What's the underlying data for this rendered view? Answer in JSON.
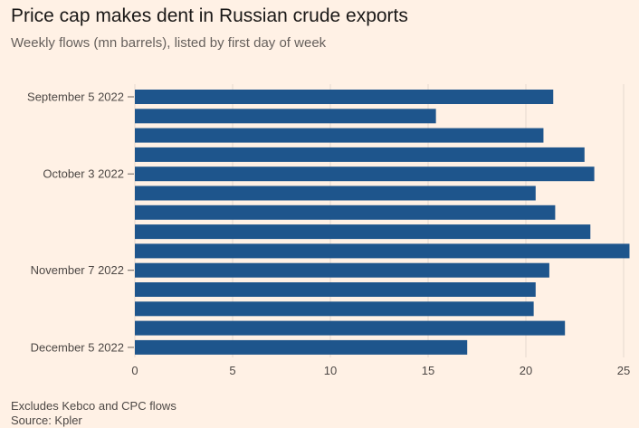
{
  "chart_data": {
    "type": "bar",
    "orientation": "horizontal",
    "title": "Price cap makes dent in Russian crude exports",
    "subtitle": "Weekly flows (mn barrels), listed by first day of week",
    "xlabel": "",
    "ylabel": "",
    "xlim": [
      0,
      25
    ],
    "xticks": [
      "0",
      "5",
      "10",
      "15",
      "20",
      "25"
    ],
    "categories": [
      "September 5 2022",
      "",
      "",
      "",
      "October 3 2022",
      "",
      "",
      "",
      "",
      "November 7 2022",
      "",
      "",
      "",
      "December 5 2022"
    ],
    "values": [
      21.4,
      15.4,
      20.9,
      23.0,
      23.5,
      20.5,
      21.5,
      23.3,
      25.3,
      21.2,
      20.5,
      20.4,
      22.0,
      17.0
    ],
    "color": "#1e558c",
    "grid": true,
    "notes": [
      "Excludes Kebco and CPC flows",
      "Source: Kpler"
    ]
  }
}
